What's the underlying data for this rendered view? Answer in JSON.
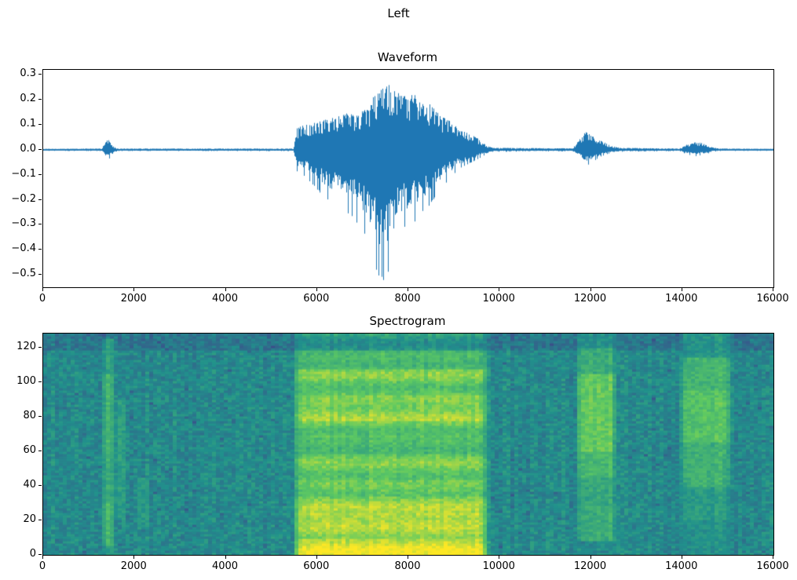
{
  "figure": {
    "suptitle": "Left",
    "background": "#ffffff"
  },
  "chart_data": [
    {
      "type": "line",
      "title": "Waveform",
      "line_color": "#1f77b4",
      "x_range": [
        0,
        16000
      ],
      "ylim": [
        -0.55,
        0.32
      ],
      "grid": false,
      "xticks": [
        {
          "v": 0,
          "label": "0"
        },
        {
          "v": 2000,
          "label": "2000"
        },
        {
          "v": 4000,
          "label": "4000"
        },
        {
          "v": 6000,
          "label": "6000"
        },
        {
          "v": 8000,
          "label": "8000"
        },
        {
          "v": 10000,
          "label": "10000"
        },
        {
          "v": 12000,
          "label": "12000"
        },
        {
          "v": 14000,
          "label": "14000"
        },
        {
          "v": 16000,
          "label": "16000"
        }
      ],
      "yticks": [
        {
          "v": 0.3,
          "label": "0.3"
        },
        {
          "v": 0.2,
          "label": "0.2"
        },
        {
          "v": 0.1,
          "label": "0.1"
        },
        {
          "v": 0.0,
          "label": "0.0"
        },
        {
          "v": -0.1,
          "label": "−0.1"
        },
        {
          "v": -0.2,
          "label": "−0.2"
        },
        {
          "v": -0.3,
          "label": "−0.3"
        },
        {
          "v": -0.4,
          "label": "−0.4"
        },
        {
          "v": -0.5,
          "label": "−0.5"
        }
      ],
      "envelope_note": "audio amplitude envelope control points as [sample_x, upper, lower]; signal is near-zero noise outside bursts; main speech burst 5500-9800 peaks +0.27 / -0.53 near x=7400-7600; small clicks near 1400, 11900, 14300",
      "envelope": [
        [
          0,
          0.004,
          -0.004
        ],
        [
          1280,
          0.005,
          -0.005
        ],
        [
          1350,
          0.03,
          -0.03
        ],
        [
          1430,
          0.045,
          -0.04
        ],
        [
          1520,
          0.015,
          -0.015
        ],
        [
          1620,
          0.005,
          -0.005
        ],
        [
          5480,
          0.005,
          -0.005
        ],
        [
          5560,
          0.09,
          -0.09
        ],
        [
          5750,
          0.1,
          -0.11
        ],
        [
          5950,
          0.11,
          -0.15
        ],
        [
          6150,
          0.12,
          -0.19
        ],
        [
          6400,
          0.13,
          -0.22
        ],
        [
          6650,
          0.15,
          -0.26
        ],
        [
          6900,
          0.15,
          -0.3
        ],
        [
          7100,
          0.17,
          -0.37
        ],
        [
          7250,
          0.22,
          -0.47
        ],
        [
          7420,
          0.26,
          -0.53
        ],
        [
          7600,
          0.27,
          -0.5
        ],
        [
          7750,
          0.23,
          -0.38
        ],
        [
          7900,
          0.22,
          -0.32
        ],
        [
          8100,
          0.23,
          -0.31
        ],
        [
          8300,
          0.2,
          -0.26
        ],
        [
          8500,
          0.18,
          -0.22
        ],
        [
          8700,
          0.14,
          -0.16
        ],
        [
          8900,
          0.12,
          -0.12
        ],
        [
          9100,
          0.09,
          -0.08
        ],
        [
          9300,
          0.07,
          -0.06
        ],
        [
          9500,
          0.05,
          -0.04
        ],
        [
          9700,
          0.02,
          -0.02
        ],
        [
          9850,
          0.008,
          -0.008
        ],
        [
          11600,
          0.006,
          -0.006
        ],
        [
          11750,
          0.04,
          -0.035
        ],
        [
          11900,
          0.075,
          -0.065
        ],
        [
          12050,
          0.06,
          -0.05
        ],
        [
          12200,
          0.04,
          -0.03
        ],
        [
          12400,
          0.02,
          -0.015
        ],
        [
          12650,
          0.008,
          -0.008
        ],
        [
          13950,
          0.005,
          -0.005
        ],
        [
          14100,
          0.02,
          -0.018
        ],
        [
          14300,
          0.032,
          -0.026
        ],
        [
          14500,
          0.025,
          -0.02
        ],
        [
          14680,
          0.01,
          -0.008
        ],
        [
          14850,
          0.005,
          -0.005
        ],
        [
          16000,
          0.004,
          -0.004
        ]
      ]
    },
    {
      "type": "heatmap",
      "title": "Spectrogram",
      "colormap": "viridis",
      "viridis_stops": [
        "#440154",
        "#3b528b",
        "#21918c",
        "#5ec962",
        "#fde725"
      ],
      "x_range": [
        0,
        16000
      ],
      "ylim": [
        0,
        128
      ],
      "xticks": [
        {
          "v": 0,
          "label": "0"
        },
        {
          "v": 2000,
          "label": "2000"
        },
        {
          "v": 4000,
          "label": "4000"
        },
        {
          "v": 6000,
          "label": "6000"
        },
        {
          "v": 8000,
          "label": "8000"
        },
        {
          "v": 10000,
          "label": "10000"
        },
        {
          "v": 12000,
          "label": "12000"
        },
        {
          "v": 14000,
          "label": "14000"
        },
        {
          "v": 16000,
          "label": "16000"
        }
      ],
      "yticks": [
        {
          "v": 0,
          "label": "0"
        },
        {
          "v": 20,
          "label": "20"
        },
        {
          "v": 40,
          "label": "40"
        },
        {
          "v": 60,
          "label": "60"
        },
        {
          "v": 80,
          "label": "80"
        },
        {
          "v": 100,
          "label": "100"
        },
        {
          "v": 120,
          "label": "120"
        }
      ],
      "base_level": 0.47,
      "base_noise": 0.16,
      "top_dark": {
        "f_start": 118,
        "delta": -0.1
      },
      "segments_note": "intensity 0..1 mapped through viridis; bands are [freq_lo, freq_hi, intensity] over x0..x1 with edge fade in samples",
      "segments": [
        {
          "x0": 1280,
          "x1": 1560,
          "fade": 80,
          "bands": [
            [
              0,
              6,
              0.5
            ],
            [
              6,
              30,
              0.66
            ],
            [
              30,
              60,
              0.6
            ],
            [
              60,
              105,
              0.64
            ],
            [
              105,
              125,
              0.55
            ]
          ]
        },
        {
          "x0": 1560,
          "x1": 1850,
          "fade": 100,
          "bands": [
            [
              20,
              90,
              0.56
            ]
          ]
        },
        {
          "x0": 2050,
          "x1": 2350,
          "fade": 100,
          "bands": [
            [
              15,
              45,
              0.55
            ]
          ]
        },
        {
          "x0": 5450,
          "x1": 9800,
          "fade": 200,
          "striate": true,
          "bands": [
            [
              0,
              10,
              0.95
            ],
            [
              10,
              24,
              0.88
            ],
            [
              24,
              34,
              0.82
            ],
            [
              34,
              44,
              0.78
            ],
            [
              44,
              58,
              0.74
            ],
            [
              58,
              68,
              0.7
            ],
            [
              68,
              78,
              0.74
            ],
            [
              78,
              92,
              0.8
            ],
            [
              92,
              108,
              0.76
            ],
            [
              108,
              118,
              0.66
            ],
            [
              118,
              128,
              0.55
            ]
          ]
        },
        {
          "x0": 11650,
          "x1": 12600,
          "fade": 150,
          "bands": [
            [
              0,
              8,
              0.45
            ],
            [
              8,
              28,
              0.62
            ],
            [
              28,
              45,
              0.6
            ],
            [
              45,
              60,
              0.68
            ],
            [
              60,
              105,
              0.76
            ],
            [
              105,
              120,
              0.62
            ],
            [
              120,
              128,
              0.5
            ]
          ]
        },
        {
          "x0": 13900,
          "x1": 15150,
          "fade": 180,
          "bands": [
            [
              0,
              20,
              0.5
            ],
            [
              20,
              40,
              0.55
            ],
            [
              40,
              65,
              0.64
            ],
            [
              65,
              95,
              0.72
            ],
            [
              95,
              115,
              0.66
            ],
            [
              115,
              128,
              0.52
            ]
          ]
        }
      ]
    }
  ]
}
